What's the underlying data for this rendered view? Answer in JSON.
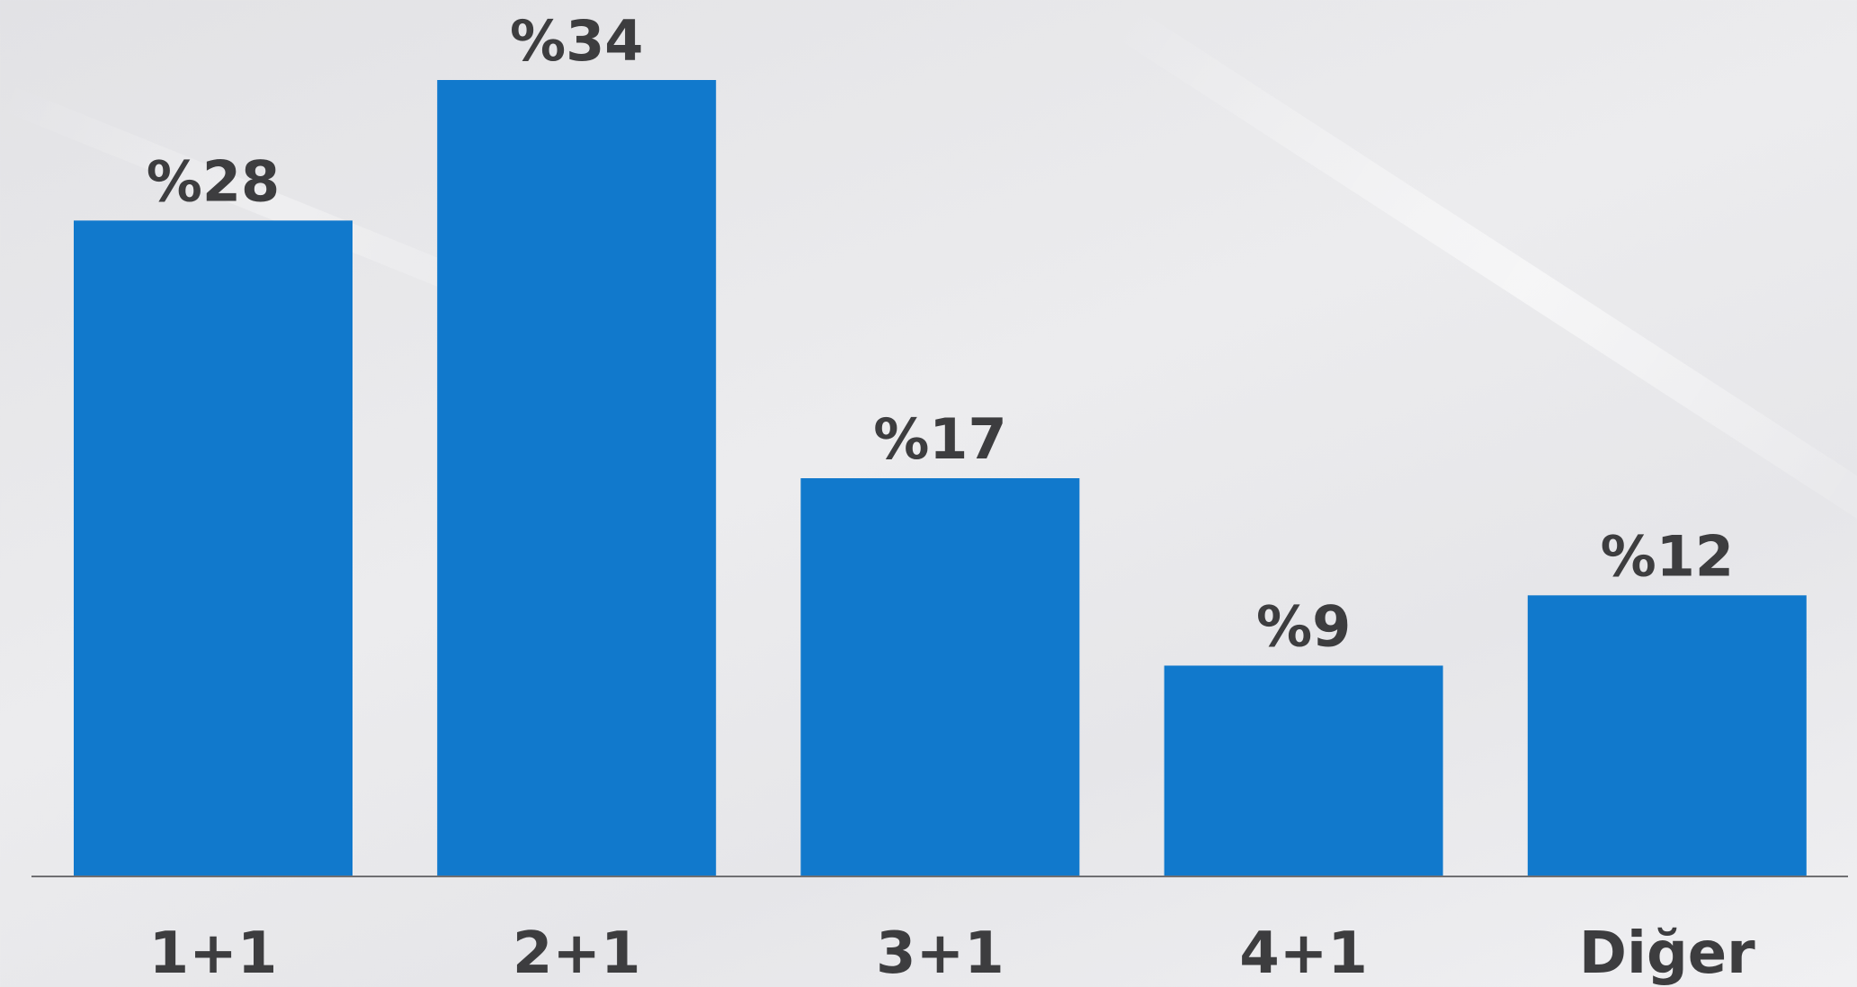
{
  "chart_data": {
    "type": "bar",
    "categories": [
      "1+1",
      "2+1",
      "3+1",
      "4+1",
      "Diğer"
    ],
    "values": [
      28,
      34,
      17,
      9,
      12
    ],
    "value_labels": [
      "%28",
      "%34",
      "%17",
      "%9",
      "%12"
    ],
    "bar_color": "#1179cc",
    "text_color": "#3d3d3f",
    "ylim": [
      0,
      34
    ],
    "grid": false,
    "legend": "none"
  }
}
